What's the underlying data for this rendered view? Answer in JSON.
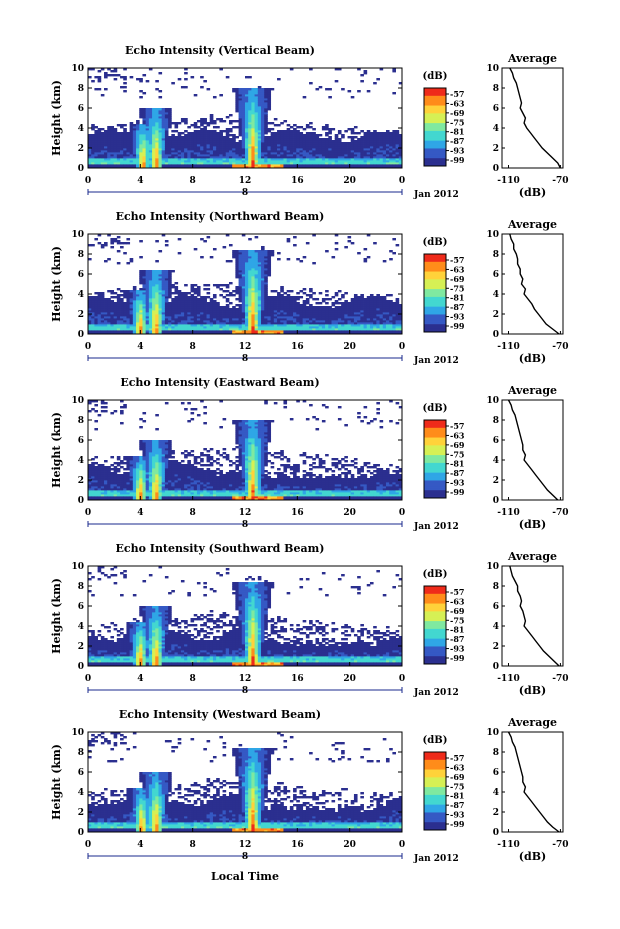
{
  "panels": [
    {
      "title": "Echo Intensity (Vertical Beam)",
      "average_profile_db": [
        -109,
        -107,
        -106,
        -104,
        -103,
        -102,
        -101,
        -100,
        -101,
        -99,
        -97,
        -98,
        -96,
        -93,
        -90,
        -87,
        -84,
        -80,
        -76,
        -72,
        -70
      ],
      "cores": [
        {
          "t": 4.2,
          "top": 4.5
        },
        {
          "t": 5.2,
          "top": 6.0
        },
        {
          "t": 12.6,
          "top": 8.0
        }
      ]
    },
    {
      "title": "Echo Intensity (Northward Beam)",
      "average_profile_db": [
        -109,
        -108,
        -106,
        -106,
        -104,
        -103,
        -103,
        -101,
        -101,
        -99,
        -100,
        -97,
        -98,
        -95,
        -92,
        -90,
        -87,
        -84,
        -81,
        -76,
        -71
      ],
      "cores": [
        {
          "t": 4.0,
          "top": 4.5
        },
        {
          "t": 5.2,
          "top": 6.5
        },
        {
          "t": 12.6,
          "top": 8.5
        }
      ]
    },
    {
      "title": "Echo Intensity (Eastward Beam)",
      "average_profile_db": [
        -110,
        -108,
        -107,
        -105,
        -104,
        -103,
        -102,
        -101,
        -100,
        -99,
        -99,
        -97,
        -98,
        -95,
        -92,
        -89,
        -86,
        -83,
        -80,
        -76,
        -72
      ],
      "cores": [
        {
          "t": 4.0,
          "top": 4.5
        },
        {
          "t": 5.2,
          "top": 6.0
        },
        {
          "t": 12.6,
          "top": 8.0
        }
      ]
    },
    {
      "title": "Echo Intensity (Southward Beam)",
      "average_profile_db": [
        -109,
        -108,
        -107,
        -105,
        -103,
        -103,
        -101,
        -100,
        -101,
        -99,
        -98,
        -97,
        -98,
        -95,
        -92,
        -89,
        -86,
        -83,
        -79,
        -75,
        -71
      ],
      "cores": [
        {
          "t": 4.0,
          "top": 4.5
        },
        {
          "t": 5.2,
          "top": 6.0
        },
        {
          "t": 12.6,
          "top": 8.5
        }
      ]
    },
    {
      "title": "Echo Intensity (Westward Beam)",
      "average_profile_db": [
        -110,
        -108,
        -107,
        -105,
        -104,
        -103,
        -102,
        -101,
        -100,
        -99,
        -99,
        -97,
        -98,
        -95,
        -92,
        -89,
        -86,
        -83,
        -80,
        -76,
        -71
      ],
      "cores": [
        {
          "t": 4.1,
          "top": 4.5
        },
        {
          "t": 5.2,
          "top": 6.0
        },
        {
          "t": 12.6,
          "top": 8.5
        }
      ]
    }
  ],
  "shared": {
    "ylabel": "Height (km)",
    "x_ticks": [
      "0",
      "4",
      "8",
      "12",
      "16",
      "20",
      "0"
    ],
    "y_ticks": [
      "0",
      "2",
      "4",
      "6",
      "8",
      "10"
    ],
    "date_marker": "8",
    "date_label": "Jan 2012",
    "colorbar_unit": "(dB)",
    "colorbar_ticks": [
      "-57",
      "-63",
      "-69",
      "-75",
      "-81",
      "-87",
      "-93",
      "-99"
    ],
    "average_title": "Average",
    "average_ticks": [
      "-110",
      "-70"
    ],
    "average_xlabel": "(dB)",
    "xlabel": "Local Time"
  },
  "chart_data": {
    "type": "heatmap",
    "x_axis": "Local Time (hours)",
    "xlim": [
      0,
      24
    ],
    "ylim": [
      0,
      10
    ],
    "color_range_db": [
      -99,
      -57
    ],
    "colormap": [
      "#2b2f8f",
      "#3559c4",
      "#2fa6e6",
      "#43d7d0",
      "#7fe9a0",
      "#d6f055",
      "#ffd23a",
      "#ff8c1a",
      "#ef2b1a"
    ],
    "average_xlim": [
      -115,
      -68
    ]
  }
}
